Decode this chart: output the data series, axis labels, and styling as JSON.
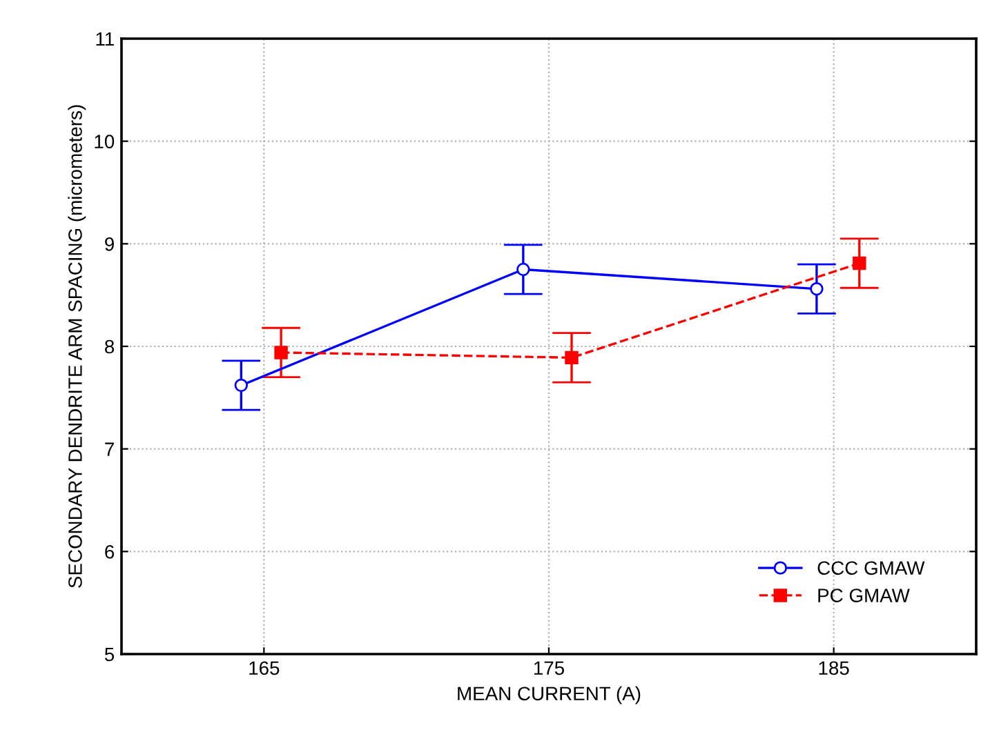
{
  "chart_data": {
    "type": "line",
    "xlabel": "MEAN CURRENT (A)",
    "ylabel": "SECONDARY DENDRITE ARM SPACING (micrometers)",
    "xlim": [
      160,
      190
    ],
    "xticks": [
      165,
      175,
      185
    ],
    "ylim": [
      5,
      11
    ],
    "yticks": [
      5,
      6,
      7,
      8,
      9,
      10,
      11
    ],
    "grid": true,
    "legend": "bottom right",
    "series": [
      {
        "name": "CCC GMAW",
        "color": "#0000ff",
        "x": [
          164.2,
          174.1,
          184.4
        ],
        "values": [
          7.62,
          8.75,
          8.56
        ],
        "errors": [
          0.24,
          0.24,
          0.24
        ],
        "marker": "circle",
        "line_style": "solid"
      },
      {
        "name": "PC GMAW",
        "color": "#ff0000",
        "x": [
          165.6,
          175.8,
          185.9
        ],
        "values": [
          7.94,
          7.89,
          8.81
        ],
        "errors": [
          0.24,
          0.24,
          0.24
        ],
        "marker": "square",
        "line_style": "dashed"
      }
    ]
  }
}
